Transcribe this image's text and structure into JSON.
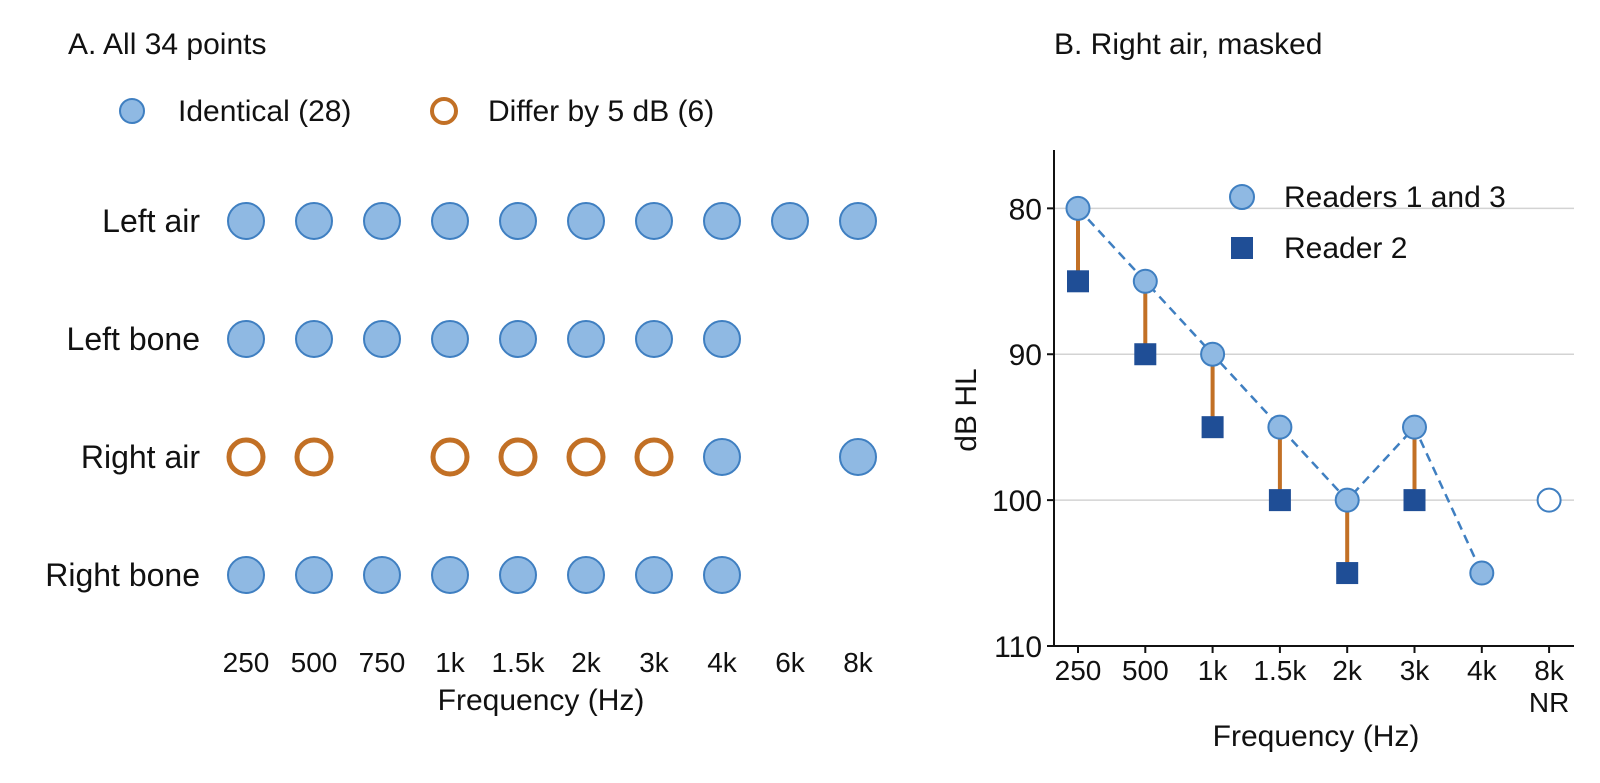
{
  "colors": {
    "identical_fill": "#8fb9e3",
    "identical_stroke": "#3f7fc1",
    "differ": "#c27025",
    "reader2": "#1f4e96",
    "dashed_line": "#3f7fc1",
    "grid": "#d3d3d3",
    "axis": "#111111"
  },
  "chart_data": [
    {
      "type": "scatter",
      "title": "A. All 34 points",
      "legend": {
        "placement": "top",
        "items": [
          {
            "key": "identical",
            "label": "Identical (28)",
            "marker": "filled-circle"
          },
          {
            "key": "differ",
            "label": "Differ by 5 dB (6)",
            "marker": "open-circle"
          }
        ]
      },
      "xlabel": "Frequency (Hz)",
      "categories": [
        "250",
        "500",
        "750",
        "1k",
        "1.5k",
        "2k",
        "3k",
        "4k",
        "6k",
        "8k"
      ],
      "rows": [
        {
          "label": "Left air",
          "points": [
            {
              "x": "250",
              "status": "identical"
            },
            {
              "x": "500",
              "status": "identical"
            },
            {
              "x": "750",
              "status": "identical"
            },
            {
              "x": "1k",
              "status": "identical"
            },
            {
              "x": "1.5k",
              "status": "identical"
            },
            {
              "x": "2k",
              "status": "identical"
            },
            {
              "x": "3k",
              "status": "identical"
            },
            {
              "x": "4k",
              "status": "identical"
            },
            {
              "x": "6k",
              "status": "identical"
            },
            {
              "x": "8k",
              "status": "identical"
            }
          ]
        },
        {
          "label": "Left bone",
          "points": [
            {
              "x": "250",
              "status": "identical"
            },
            {
              "x": "500",
              "status": "identical"
            },
            {
              "x": "750",
              "status": "identical"
            },
            {
              "x": "1k",
              "status": "identical"
            },
            {
              "x": "1.5k",
              "status": "identical"
            },
            {
              "x": "2k",
              "status": "identical"
            },
            {
              "x": "3k",
              "status": "identical"
            },
            {
              "x": "4k",
              "status": "identical"
            }
          ]
        },
        {
          "label": "Right air",
          "points": [
            {
              "x": "250",
              "status": "differ"
            },
            {
              "x": "500",
              "status": "differ"
            },
            {
              "x": "1k",
              "status": "differ"
            },
            {
              "x": "1.5k",
              "status": "differ"
            },
            {
              "x": "2k",
              "status": "differ"
            },
            {
              "x": "3k",
              "status": "differ"
            },
            {
              "x": "4k",
              "status": "identical"
            },
            {
              "x": "8k",
              "status": "identical"
            }
          ]
        },
        {
          "label": "Right bone",
          "points": [
            {
              "x": "250",
              "status": "identical"
            },
            {
              "x": "500",
              "status": "identical"
            },
            {
              "x": "750",
              "status": "identical"
            },
            {
              "x": "1k",
              "status": "identical"
            },
            {
              "x": "1.5k",
              "status": "identical"
            },
            {
              "x": "2k",
              "status": "identical"
            },
            {
              "x": "3k",
              "status": "identical"
            },
            {
              "x": "4k",
              "status": "identical"
            }
          ]
        }
      ]
    },
    {
      "type": "line",
      "title": "B. Right air, masked",
      "xlabel": "Frequency (Hz)",
      "ylabel": "dB HL",
      "categories": [
        "250",
        "500",
        "1k",
        "1.5k",
        "2k",
        "3k",
        "4k",
        "8k"
      ],
      "category_sublabels": {
        "8k": "NR"
      },
      "ylim": [
        110,
        76
      ],
      "y_inverted": true,
      "yticks": [
        80,
        90,
        100,
        110
      ],
      "grid": {
        "horizontal": true,
        "values": [
          80,
          90,
          100
        ]
      },
      "legend": {
        "placement": "top-right"
      },
      "series": [
        {
          "name": "Readers 1 and 3",
          "marker": "circle",
          "line": "dashed",
          "values": [
            80,
            85,
            90,
            95,
            100,
            95,
            105,
            null
          ]
        },
        {
          "name": "Reader 2",
          "marker": "square",
          "line": "none",
          "values": [
            85,
            90,
            95,
            100,
            105,
            100,
            null,
            null
          ]
        }
      ],
      "no_response_points": [
        {
          "x": "8k",
          "y": 100,
          "marker": "open-circle"
        }
      ],
      "difference_connectors": true
    }
  ]
}
